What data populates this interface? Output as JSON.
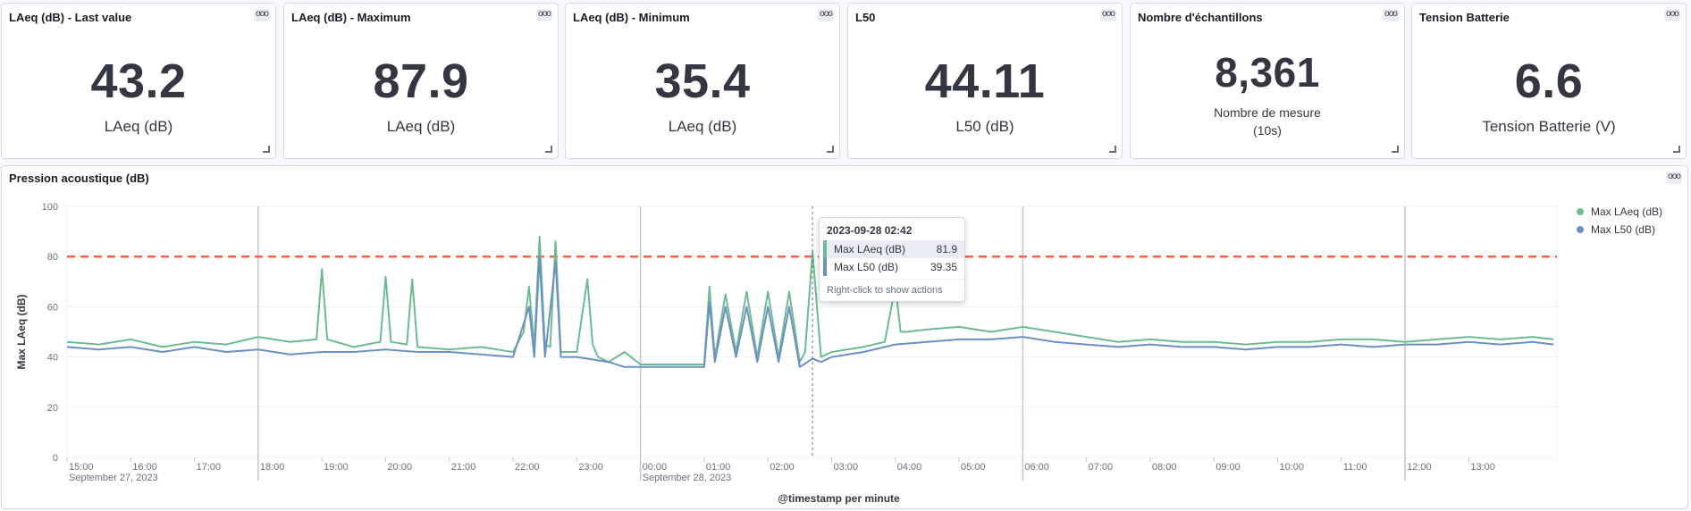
{
  "colors": {
    "max_laeq": "#6dbb92",
    "max_l50": "#6e8fc4",
    "threshold": "#e7664c",
    "vertical_marker": "#c2c6cc"
  },
  "metrics": [
    {
      "title": "LAeq (dB) - Last value",
      "value": "43.2",
      "label": "LAeq (dB)",
      "label2": ""
    },
    {
      "title": "LAeq (dB) - Maximum",
      "value": "87.9",
      "label": "LAeq (dB)",
      "label2": ""
    },
    {
      "title": "LAeq (dB) - Minimum",
      "value": "35.4",
      "label": "LAeq (dB)",
      "label2": ""
    },
    {
      "title": "L50",
      "value": "44.11",
      "label": "L50 (dB)",
      "label2": ""
    },
    {
      "title": "Nombre d'échantillons",
      "value": "8,361",
      "label": "Nombre de mesure",
      "label2": "(10s)"
    },
    {
      "title": "Tension Batterie",
      "value": "6.6",
      "label": "Tension Batterie (V)",
      "label2": ""
    }
  ],
  "options_icon": "ooo",
  "chart_panel": {
    "title": "Pression acoustique (dB)"
  },
  "chart_data": {
    "type": "line",
    "xlabel": "@timestamp per minute",
    "ylabel": "Max LAeq (dB)",
    "ylim": [
      0,
      100
    ],
    "yticks": [
      0,
      20,
      40,
      60,
      80,
      100
    ],
    "xlim": [
      "2023-09-27 15:00",
      "2023-09-28 14:23"
    ],
    "xticks": [
      "15:00",
      "16:00",
      "17:00",
      "18:00",
      "19:00",
      "20:00",
      "21:00",
      "22:00",
      "23:00",
      "00:00",
      "01:00",
      "02:00",
      "03:00",
      "04:00",
      "05:00",
      "06:00",
      "07:00",
      "08:00",
      "09:00",
      "10:00",
      "11:00",
      "12:00",
      "13:00"
    ],
    "date_labels": [
      {
        "at": "15:00",
        "text": "September 27, 2023"
      },
      {
        "at": "00:00",
        "text": "September 28, 2023"
      }
    ],
    "threshold": {
      "value": 80,
      "style": "dashed"
    },
    "grid": true,
    "legend_position": "top-right",
    "series": [
      {
        "name": "Max LAeq (dB)",
        "x": [
          "15:00",
          "15:30",
          "16:00",
          "16:30",
          "17:00",
          "17:30",
          "18:00",
          "18:30",
          "18:55",
          "19:00",
          "19:05",
          "19:30",
          "19:55",
          "20:00",
          "20:05",
          "20:20",
          "20:25",
          "20:30",
          "21:00",
          "21:30",
          "22:00",
          "22:10",
          "22:15",
          "22:20",
          "22:25",
          "22:30",
          "22:35",
          "22:40",
          "22:45",
          "23:00",
          "23:10",
          "23:15",
          "23:20",
          "23:30",
          "23:45",
          "00:00",
          "00:30",
          "01:00",
          "01:05",
          "01:10",
          "01:20",
          "01:30",
          "01:40",
          "01:50",
          "02:00",
          "02:10",
          "02:20",
          "02:30",
          "02:35",
          "02:42",
          "02:50",
          "03:00",
          "03:30",
          "03:50",
          "04:00",
          "04:05",
          "04:10",
          "04:30",
          "05:00",
          "05:30",
          "06:00",
          "06:30",
          "07:00",
          "07:30",
          "08:00",
          "08:30",
          "09:00",
          "09:30",
          "10:00",
          "10:30",
          "11:00",
          "11:30",
          "12:00",
          "12:30",
          "13:00",
          "13:30",
          "14:00",
          "14:20"
        ],
        "values": [
          46,
          45,
          47,
          44,
          46,
          45,
          48,
          46,
          47,
          75,
          47,
          44,
          46,
          72,
          46,
          45,
          71,
          44,
          43,
          44,
          42,
          50,
          68,
          44,
          88,
          45,
          44,
          86,
          42,
          42,
          71,
          45,
          40,
          38,
          42,
          37,
          37,
          37,
          68,
          40,
          65,
          42,
          66,
          40,
          66,
          40,
          66,
          38,
          42,
          82,
          40,
          42,
          44,
          46,
          68,
          50,
          50,
          51,
          52,
          50,
          52,
          50,
          48,
          46,
          47,
          46,
          46,
          45,
          46,
          46,
          47,
          47,
          46,
          47,
          48,
          47,
          48,
          47
        ]
      },
      {
        "name": "Max L50 (dB)",
        "x": [
          "15:00",
          "15:30",
          "16:00",
          "16:30",
          "17:00",
          "17:30",
          "18:00",
          "18:30",
          "19:00",
          "19:30",
          "20:00",
          "20:30",
          "21:00",
          "21:30",
          "22:00",
          "22:15",
          "22:20",
          "22:25",
          "22:30",
          "22:40",
          "22:45",
          "23:00",
          "23:30",
          "23:45",
          "00:00",
          "00:30",
          "01:00",
          "01:05",
          "01:10",
          "01:20",
          "01:30",
          "01:40",
          "01:50",
          "02:00",
          "02:10",
          "02:20",
          "02:30",
          "02:42",
          "02:50",
          "03:00",
          "03:30",
          "04:00",
          "04:30",
          "05:00",
          "05:30",
          "06:00",
          "06:30",
          "07:00",
          "07:30",
          "08:00",
          "08:30",
          "09:00",
          "09:30",
          "10:00",
          "10:30",
          "11:00",
          "11:30",
          "12:00",
          "12:30",
          "13:00",
          "13:30",
          "14:00",
          "14:20"
        ],
        "values": [
          44,
          43,
          44,
          42,
          44,
          42,
          43,
          41,
          42,
          42,
          43,
          42,
          42,
          41,
          40,
          60,
          40,
          80,
          40,
          78,
          40,
          40,
          38,
          36,
          36,
          36,
          36,
          62,
          38,
          60,
          40,
          60,
          38,
          60,
          38,
          60,
          36,
          39.35,
          38,
          40,
          42,
          45,
          46,
          47,
          47,
          48,
          46,
          45,
          44,
          45,
          44,
          44,
          43,
          44,
          44,
          45,
          44,
          45,
          45,
          46,
          45,
          46,
          45
        ]
      }
    ],
    "tooltip": {
      "title": "2023-09-28 02:42",
      "rows": [
        {
          "name": "Max LAeq (dB)",
          "value": "81.9"
        },
        {
          "name": "Max L50 (dB)",
          "value": "39.35"
        }
      ],
      "hint": "Right-click to show actions"
    }
  }
}
